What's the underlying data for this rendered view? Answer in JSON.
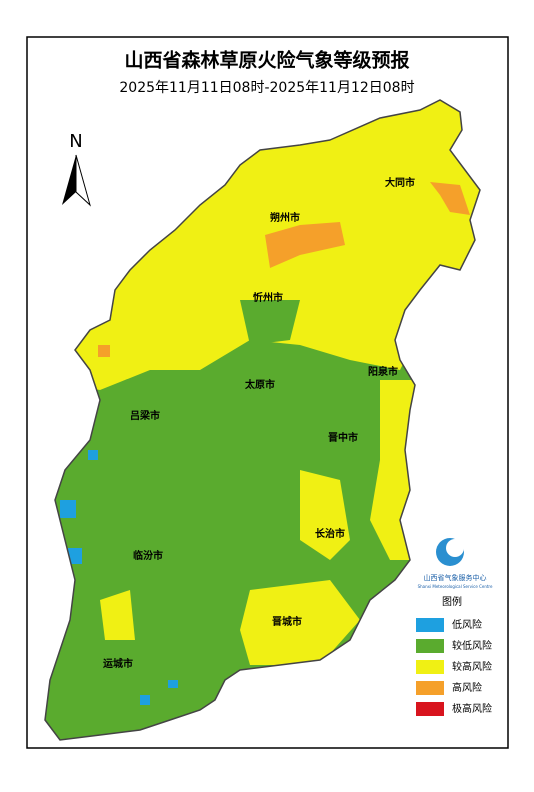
{
  "header": {
    "title": "山西省森林草原火险气象等级预报",
    "subtitle": "2025年11月11日08时-2025年11月12日08时"
  },
  "north": "N",
  "cities": [
    "大同市",
    "朔州市",
    "忻州市",
    "阳泉市",
    "太原市",
    "吕梁市",
    "晋中市",
    "长治市",
    "临汾市",
    "晋城市",
    "运城市"
  ],
  "logo": {
    "name": "山西省气象服务中心",
    "english": "Shanxi Meteorological Service Centre"
  },
  "legend": {
    "title": "图例",
    "items": [
      {
        "name": "低风险",
        "color": "#1ea0e0"
      },
      {
        "name": "较低风险",
        "color": "#5aab2e"
      },
      {
        "name": "较高风险",
        "color": "#f0f014"
      },
      {
        "name": "高风险",
        "color": "#f5a02a"
      },
      {
        "name": "极高风险",
        "color": "#d8141e"
      }
    ]
  }
}
